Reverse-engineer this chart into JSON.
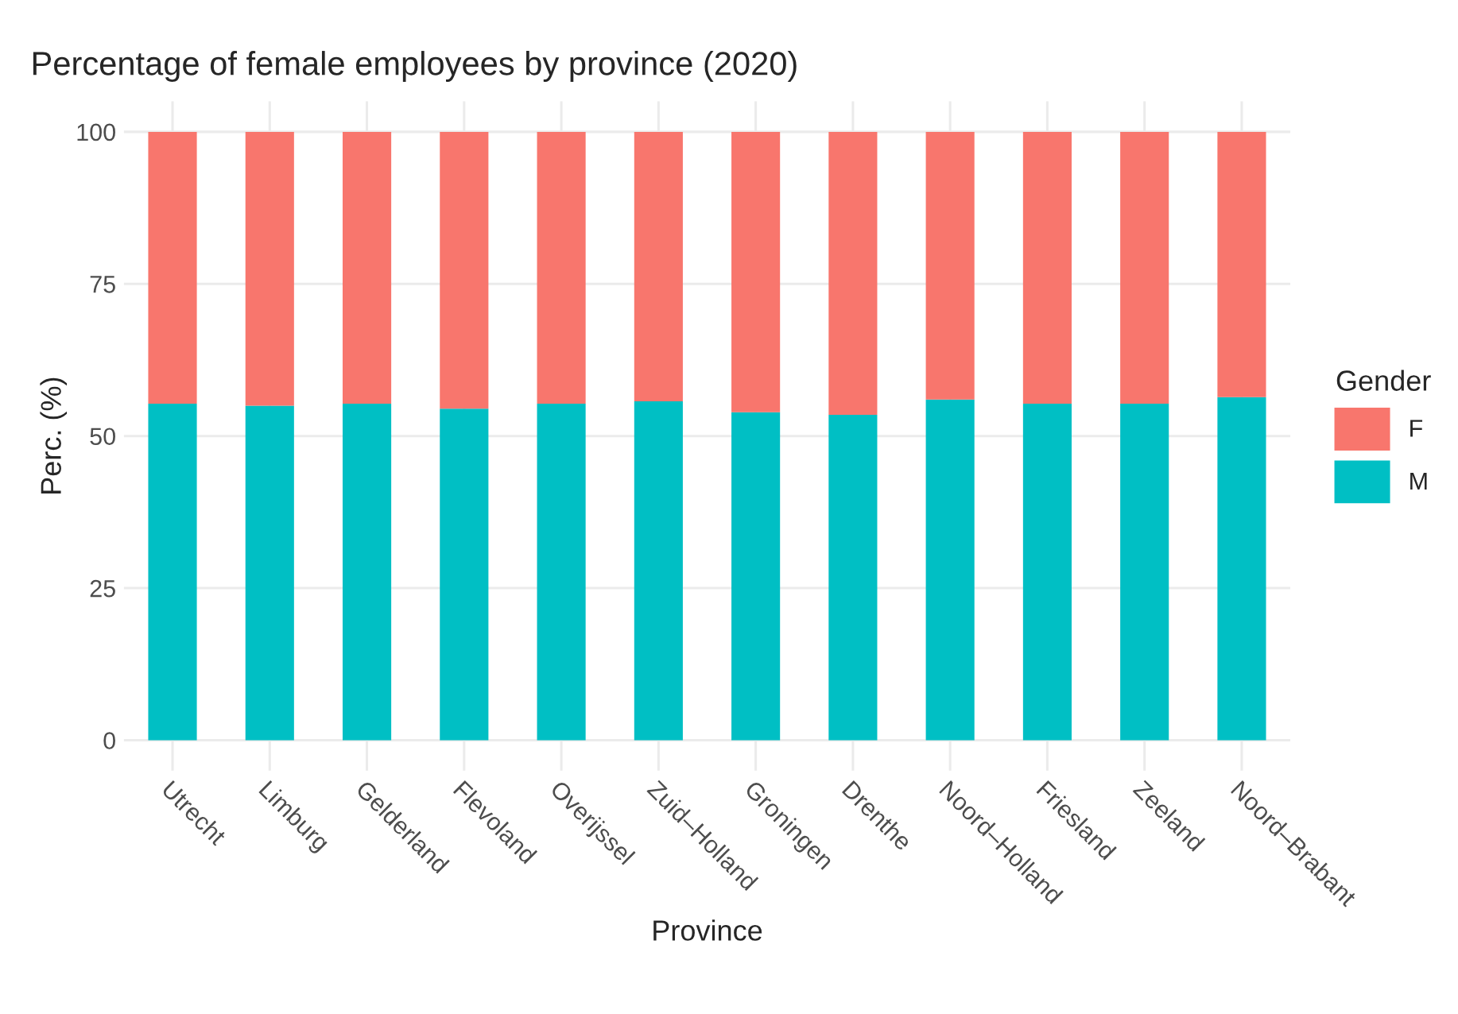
{
  "chart_data": {
    "type": "bar",
    "title": "Percentage of female employees by province (2020)",
    "xlabel": "Province",
    "ylabel": "Perc. (%)",
    "legend_title": "Gender",
    "categories": [
      "Utrecht",
      "Limburg",
      "Gelderland",
      "Flevoland",
      "Overijssel",
      "Zuid–Holland",
      "Groningen",
      "Drenthe",
      "Noord–Holland",
      "Friesland",
      "Zeeland",
      "Noord–Brabant"
    ],
    "stacked": true,
    "series": [
      {
        "name": "M",
        "color": "#00bfc4",
        "values": [
          55.3,
          55.0,
          55.3,
          54.5,
          55.3,
          55.7,
          53.9,
          53.5,
          56.0,
          55.3,
          55.3,
          56.4
        ]
      },
      {
        "name": "F",
        "color": "#f8766d",
        "values": [
          44.7,
          45.0,
          44.7,
          45.5,
          44.7,
          44.3,
          46.1,
          46.5,
          44.0,
          44.7,
          44.7,
          43.6
        ]
      }
    ],
    "ylim": [
      -5,
      105
    ],
    "yticks": [
      0,
      25,
      50,
      75,
      100
    ],
    "grid": true,
    "legend": "right"
  }
}
